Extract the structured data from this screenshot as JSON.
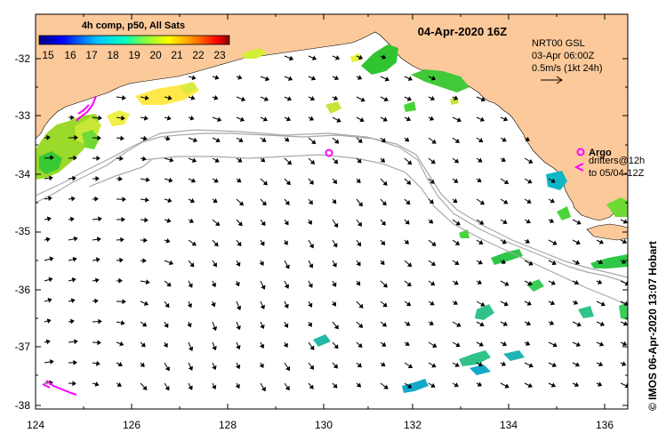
{
  "map": {
    "date_title": "04-Apr-2020 16Z",
    "colorbar": {
      "label": "4h comp, p50, All Sats",
      "ticks": [
        "15",
        "16",
        "17",
        "18",
        "19",
        "20",
        "21",
        "22",
        "23"
      ],
      "colors": [
        "#00007f",
        "#0000ff",
        "#007fff",
        "#00ffff",
        "#7fff7f",
        "#ffff00",
        "#ff7f00",
        "#ff0000",
        "#7f0000"
      ]
    },
    "model": {
      "name": "NRT00 GSL",
      "time": "03-Apr 06:00Z",
      "scale": "0.5m/s (1kt 24h)"
    },
    "legend": {
      "argo_label": "Argo",
      "drifter_line1": "drifters@12h",
      "drifter_line2": "to 05/04-12Z"
    },
    "credit": "© IMOS 06-Apr-2020 13:07 Hobart",
    "x_ticks": [
      "124",
      "126",
      "128",
      "130",
      "132",
      "134",
      "136"
    ],
    "y_ticks": [
      "-32",
      "-33",
      "-34",
      "-35",
      "-36",
      "-37",
      "-38"
    ],
    "colors": {
      "land": "#fcc99a",
      "contour": "#a8a8a8",
      "argo": "#ff00ff",
      "drifter": "#ff00ff"
    }
  }
}
